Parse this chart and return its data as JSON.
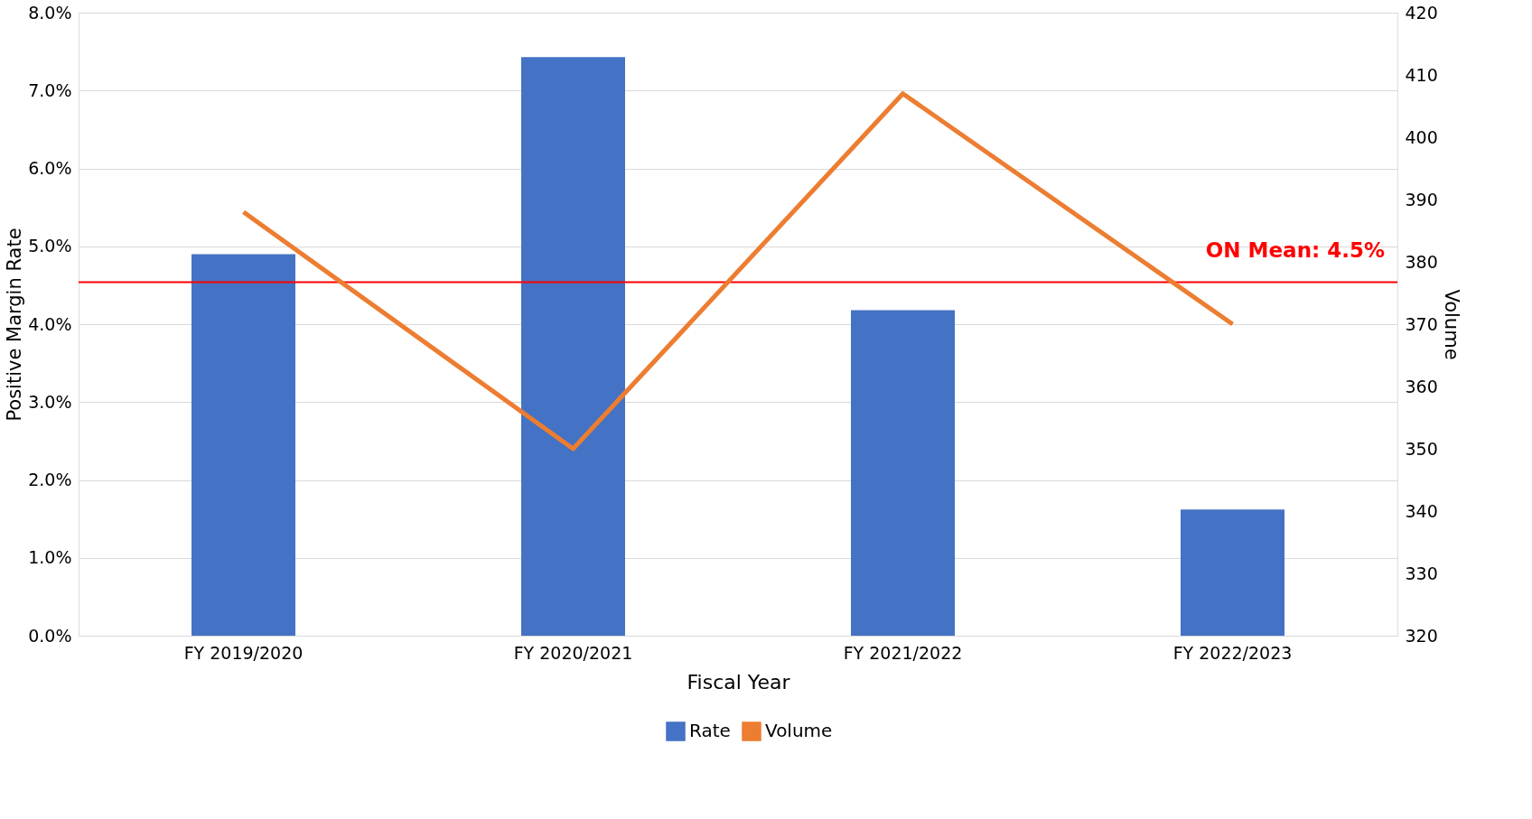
{
  "chart_data": {
    "type": "bar",
    "xlabel": "Fiscal Year",
    "ylabel": "Positive Margin Rate",
    "y2label": "Volume",
    "categories": [
      "FY 2019/2020",
      "FY 2020/2021",
      "FY 2021/2022",
      "FY 2022/2023"
    ],
    "series": [
      {
        "name": "Rate",
        "color": "#4472c4",
        "values": [
          4.9,
          7.43,
          4.18,
          1.62
        ]
      },
      {
        "name": "Volume",
        "type": "line",
        "axis": "y2",
        "color": "#ed7d31",
        "values": [
          388,
          350,
          407,
          370
        ]
      }
    ],
    "ylim": [
      0,
      8
    ],
    "yticks": [
      {
        "value": 0,
        "label": "0.0%"
      },
      {
        "value": 1,
        "label": "1.0%"
      },
      {
        "value": 2,
        "label": "2.0%"
      },
      {
        "value": 3,
        "label": "3.0%"
      },
      {
        "value": 4,
        "label": "4.0%"
      },
      {
        "value": 5,
        "label": "5.0%"
      },
      {
        "value": 6,
        "label": "6.0%"
      },
      {
        "value": 7,
        "label": "7.0%"
      },
      {
        "value": 8,
        "label": "8.0%"
      }
    ],
    "y2lim": [
      320,
      420
    ],
    "y2ticks": [
      320,
      330,
      340,
      350,
      360,
      370,
      380,
      390,
      400,
      410,
      420
    ],
    "ref_lines": [
      {
        "axis": "y",
        "value": 4.54,
        "label": "ON Mean: 4.5%",
        "color": "#ff0000"
      }
    ],
    "grid": "y",
    "legend": "bottom"
  }
}
